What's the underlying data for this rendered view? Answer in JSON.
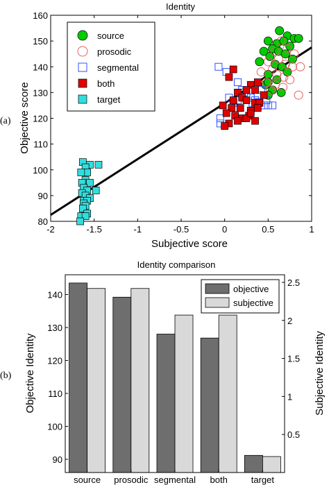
{
  "panel_labels": [
    "(a)",
    "(b)"
  ],
  "chart_data": [
    {
      "type": "scatter",
      "title": "Identity",
      "xlabel": "Subjective score",
      "ylabel": "Objective score",
      "xlim": [
        -2,
        1
      ],
      "ylim": [
        80,
        160
      ],
      "xticks": [
        -2,
        -1.5,
        -1,
        -0.5,
        0,
        0.5,
        1
      ],
      "yticks": [
        80,
        90,
        100,
        110,
        120,
        130,
        140,
        150,
        160
      ],
      "xtick_labels": [
        "-2",
        "-1.5",
        "-1",
        "-0.5",
        "0",
        "0.5",
        "1"
      ],
      "ytick_labels": [
        "80",
        "90",
        "100",
        "110",
        "120",
        "130",
        "140",
        "150",
        "160"
      ],
      "grid": false,
      "legend_position": "top-left",
      "fit_line": {
        "x": [
          -2,
          1
        ],
        "y": [
          82.5,
          147.5
        ]
      },
      "series": [
        {
          "name": "source",
          "marker": "circle",
          "filled": true,
          "color": "#00cc00",
          "points": [
            [
              0.63,
              154
            ],
            [
              0.72,
              152
            ],
            [
              0.8,
              151
            ],
            [
              0.85,
              151
            ],
            [
              0.5,
              150
            ],
            [
              0.6,
              149
            ],
            [
              0.68,
              150
            ],
            [
              0.75,
              148
            ],
            [
              0.55,
              147
            ],
            [
              0.45,
              146
            ],
            [
              0.62,
              146
            ],
            [
              0.7,
              145
            ],
            [
              0.52,
              144
            ],
            [
              0.78,
              143
            ],
            [
              0.4,
              142
            ],
            [
              0.58,
              141
            ],
            [
              0.66,
              140
            ],
            [
              0.72,
              138
            ],
            [
              0.5,
              137
            ],
            [
              0.6,
              135
            ],
            [
              0.47,
              133
            ],
            [
              0.55,
              131
            ],
            [
              0.65,
              130
            ],
            [
              0.5,
              129
            ],
            [
              0.5,
              134
            ]
          ]
        },
        {
          "name": "prosodic",
          "marker": "circle",
          "filled": false,
          "color": "#e06060",
          "points": [
            [
              0.65,
              150
            ],
            [
              0.72,
              147
            ],
            [
              0.58,
              146
            ],
            [
              0.8,
              145
            ],
            [
              0.62,
              143
            ],
            [
              0.5,
              142
            ],
            [
              0.7,
              141
            ],
            [
              0.78,
              140
            ],
            [
              0.87,
              140
            ],
            [
              0.55,
              139
            ],
            [
              0.42,
              138
            ],
            [
              0.6,
              137
            ],
            [
              0.68,
              136
            ],
            [
              0.75,
              135
            ],
            [
              0.48,
              134
            ],
            [
              0.58,
              133
            ],
            [
              0.67,
              132
            ],
            [
              0.53,
              131
            ],
            [
              0.85,
              129
            ]
          ]
        },
        {
          "name": "segmental",
          "marker": "square",
          "filled": false,
          "color": "#3050ff",
          "points": [
            [
              -0.07,
              140
            ],
            [
              0.02,
              138
            ],
            [
              0.15,
              134
            ],
            [
              0.2,
              131
            ],
            [
              0.25,
              129
            ],
            [
              0.3,
              128
            ],
            [
              0.35,
              127
            ],
            [
              0.4,
              126
            ],
            [
              0.45,
              125
            ],
            [
              0.1,
              126
            ],
            [
              0.05,
              128
            ],
            [
              0.15,
              127
            ],
            [
              0.22,
              130
            ],
            [
              0.38,
              129
            ],
            [
              0.42,
              131
            ],
            [
              0.48,
              127
            ],
            [
              0.32,
              126
            ],
            [
              0.12,
              124
            ],
            [
              -0.05,
              120
            ],
            [
              -0.05,
              118
            ],
            [
              0.5,
              125
            ],
            [
              0.55,
              125
            ]
          ]
        },
        {
          "name": "both",
          "marker": "square",
          "filled": true,
          "color": "#e00000",
          "points": [
            [
              0.1,
              139
            ],
            [
              0.05,
              136
            ],
            [
              0.38,
              134
            ],
            [
              0.3,
              133
            ],
            [
              0.25,
              131
            ],
            [
              0.35,
              131
            ],
            [
              0.15,
              130
            ],
            [
              0.2,
              128
            ],
            [
              0.45,
              129
            ],
            [
              0.1,
              127
            ],
            [
              0.25,
              127
            ],
            [
              0.35,
              126
            ],
            [
              0.4,
              126
            ],
            [
              -0.02,
              125
            ],
            [
              0.08,
              124
            ],
            [
              0.18,
              124
            ],
            [
              0.3,
              123
            ],
            [
              0.38,
              124
            ],
            [
              0.02,
              122
            ],
            [
              0.12,
              121
            ],
            [
              0.2,
              120
            ],
            [
              0.28,
              121
            ],
            [
              0.35,
              119
            ],
            [
              0.05,
              118
            ],
            [
              0.15,
              119
            ],
            [
              0.25,
              120
            ],
            [
              0.3,
              122
            ],
            [
              0.0,
              117
            ]
          ]
        },
        {
          "name": "target",
          "marker": "square",
          "filled": true,
          "color": "#33dddd",
          "points": [
            [
              -1.63,
              103
            ],
            [
              -1.55,
              102
            ],
            [
              -1.45,
              102
            ],
            [
              -1.6,
              101
            ],
            [
              -1.58,
              99
            ],
            [
              -1.65,
              99
            ],
            [
              -1.6,
              96
            ],
            [
              -1.64,
              95
            ],
            [
              -1.55,
              95
            ],
            [
              -1.62,
              93
            ],
            [
              -1.58,
              92
            ],
            [
              -1.48,
              92
            ],
            [
              -1.64,
              91
            ],
            [
              -1.6,
              90
            ],
            [
              -1.55,
              89
            ],
            [
              -1.62,
              88
            ],
            [
              -1.58,
              88
            ],
            [
              -1.62,
              87
            ],
            [
              -1.6,
              86
            ],
            [
              -1.63,
              85
            ],
            [
              -1.58,
              83
            ],
            [
              -1.65,
              82
            ],
            [
              -1.6,
              82
            ],
            [
              -1.66,
              80
            ]
          ]
        }
      ]
    },
    {
      "type": "bar",
      "title": "Identity comparison",
      "ylabel": "Objective Identity",
      "ylabel_right": "Subjective Identity",
      "categories": [
        "source",
        "prosodic",
        "segmental",
        "both",
        "target"
      ],
      "ylim": [
        86,
        146
      ],
      "ylim_right": [
        0,
        2.6
      ],
      "yticks": [
        90,
        100,
        110,
        120,
        130,
        140
      ],
      "ytick_labels": [
        "90",
        "100",
        "110",
        "120",
        "130",
        "140"
      ],
      "yticks_right": [
        0.5,
        1,
        1.5,
        2,
        2.5
      ],
      "ytick_labels_right": [
        "0.5",
        "1",
        "1.5",
        "2",
        "2.5"
      ],
      "grid": false,
      "legend_position": "top-right",
      "series": [
        {
          "name": "objective",
          "axis": "left",
          "color": "#6e6e6e",
          "values": [
            143.5,
            139.2,
            128.0,
            126.8,
            91.2
          ]
        },
        {
          "name": "subjective",
          "axis": "right",
          "color": "#d9d9d9",
          "values": [
            2.42,
            2.42,
            2.07,
            2.07,
            0.21
          ]
        }
      ]
    }
  ]
}
